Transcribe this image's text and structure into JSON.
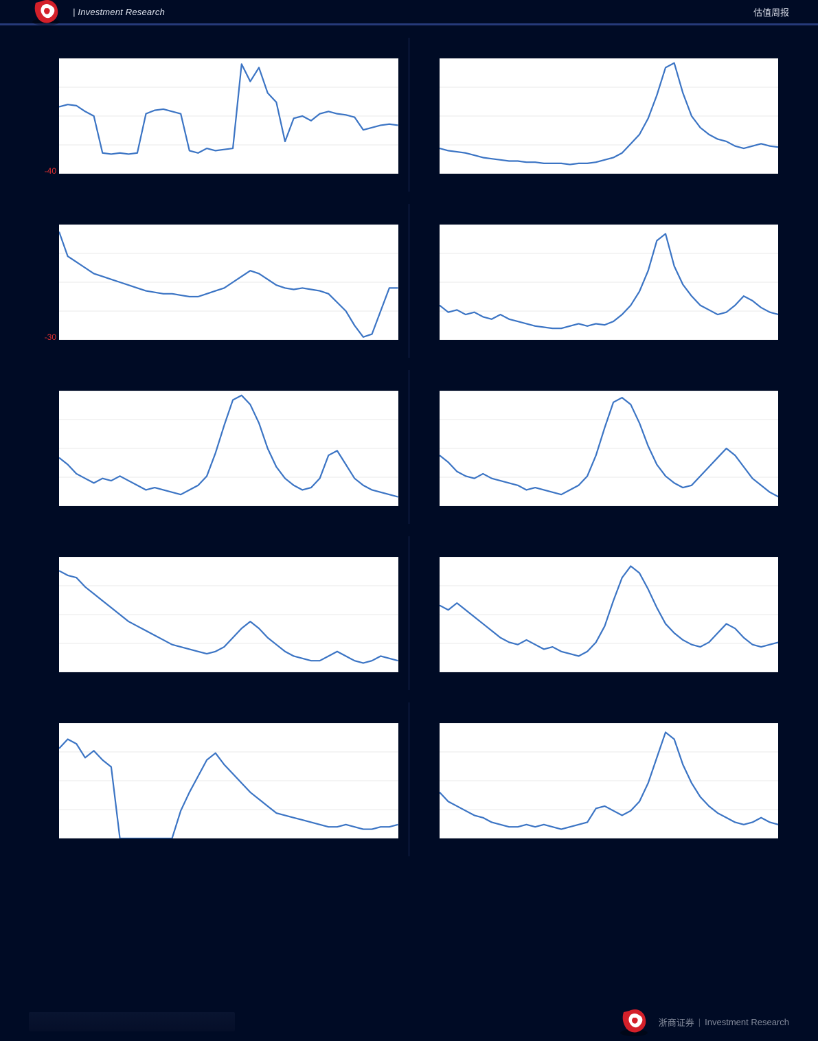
{
  "header": {
    "left_label": "| Investment Research",
    "right_label": "估值周报"
  },
  "footer": {
    "brand_cn": "浙商证券",
    "brand_en": "Investment Research"
  },
  "chart_defaults": {
    "line_color": "#3b74c4",
    "grid_color": "#bfbfbf",
    "axis_color": "#9a9a9a",
    "background_color": "#ffffff",
    "line_width": 2.2,
    "n_hgrid": 4,
    "title_fontsize": 14,
    "ylabel_fontsize": 12,
    "aspect": "wide"
  },
  "charts": [
    {
      "id": "r1l",
      "col": "left",
      "title": "",
      "ylim": [
        -40,
        60
      ],
      "ytick_step": 20,
      "min_label_red": "-40",
      "values": [
        18,
        20,
        19,
        14,
        10,
        -22,
        -23,
        -22,
        -23,
        -22,
        12,
        15,
        16,
        14,
        12,
        -20,
        -22,
        -18,
        -20,
        -19,
        -18,
        55,
        40,
        52,
        30,
        22,
        -12,
        8,
        10,
        6,
        12,
        14,
        12,
        11,
        9,
        -2,
        0,
        2,
        3,
        2
      ]
    },
    {
      "id": "r1r",
      "col": "right",
      "title": "",
      "ylim": [
        0,
        100
      ],
      "ytick_step": 20,
      "values": [
        22,
        20,
        19,
        18,
        16,
        14,
        13,
        12,
        11,
        11,
        10,
        10,
        9,
        9,
        9,
        8,
        9,
        9,
        10,
        12,
        14,
        18,
        26,
        34,
        48,
        68,
        92,
        96,
        70,
        50,
        40,
        34,
        30,
        28,
        24,
        22,
        24,
        26,
        24,
        23
      ]
    },
    {
      "id": "r2l",
      "col": "left",
      "title": "",
      "ylim": [
        -30,
        50
      ],
      "ytick_step": 20,
      "min_label_red": "-30",
      "values": [
        45,
        28,
        24,
        20,
        16,
        14,
        12,
        10,
        8,
        6,
        4,
        3,
        2,
        2,
        1,
        0,
        0,
        2,
        4,
        6,
        10,
        14,
        18,
        16,
        12,
        8,
        6,
        5,
        6,
        5,
        4,
        2,
        -4,
        -10,
        -20,
        -28,
        -26,
        -10,
        6,
        6
      ]
    },
    {
      "id": "r2r",
      "col": "right",
      "title": "",
      "ylim": [
        0,
        100
      ],
      "ytick_step": 20,
      "values": [
        30,
        24,
        26,
        22,
        24,
        20,
        18,
        22,
        18,
        16,
        14,
        12,
        11,
        10,
        10,
        12,
        14,
        12,
        14,
        13,
        16,
        22,
        30,
        42,
        60,
        86,
        92,
        64,
        48,
        38,
        30,
        26,
        22,
        24,
        30,
        38,
        34,
        28,
        24,
        22
      ]
    },
    {
      "id": "r3l",
      "col": "left",
      "title": "",
      "ylim": [
        0,
        100
      ],
      "ytick_step": 20,
      "values": [
        42,
        36,
        28,
        24,
        20,
        24,
        22,
        26,
        22,
        18,
        14,
        16,
        14,
        12,
        10,
        14,
        18,
        26,
        46,
        70,
        92,
        96,
        88,
        72,
        50,
        34,
        24,
        18,
        14,
        16,
        24,
        44,
        48,
        36,
        24,
        18,
        14,
        12,
        10,
        8
      ]
    },
    {
      "id": "r3r",
      "col": "right",
      "title": "",
      "ylim": [
        0,
        100
      ],
      "ytick_step": 20,
      "values": [
        44,
        38,
        30,
        26,
        24,
        28,
        24,
        22,
        20,
        18,
        14,
        16,
        14,
        12,
        10,
        14,
        18,
        26,
        44,
        68,
        90,
        94,
        88,
        72,
        52,
        36,
        26,
        20,
        16,
        18,
        26,
        34,
        42,
        50,
        44,
        34,
        24,
        18,
        12,
        8
      ]
    },
    {
      "id": "r4l",
      "col": "left",
      "title": "",
      "ylim": [
        0,
        100
      ],
      "ytick_step": 20,
      "values": [
        88,
        84,
        82,
        74,
        68,
        62,
        56,
        50,
        44,
        40,
        36,
        32,
        28,
        24,
        22,
        20,
        18,
        16,
        18,
        22,
        30,
        38,
        44,
        38,
        30,
        24,
        18,
        14,
        12,
        10,
        10,
        14,
        18,
        14,
        10,
        8,
        10,
        14,
        12,
        10
      ]
    },
    {
      "id": "r4r",
      "col": "right",
      "title": "",
      "ylim": [
        0,
        100
      ],
      "ytick_step": 20,
      "values": [
        58,
        54,
        60,
        54,
        48,
        42,
        36,
        30,
        26,
        24,
        28,
        24,
        20,
        22,
        18,
        16,
        14,
        18,
        26,
        40,
        62,
        82,
        92,
        86,
        72,
        56,
        42,
        34,
        28,
        24,
        22,
        26,
        34,
        42,
        38,
        30,
        24,
        22,
        24,
        26
      ]
    },
    {
      "id": "r5l",
      "col": "left",
      "title": "",
      "ylim": [
        0,
        100
      ],
      "ytick_step": 20,
      "values": [
        78,
        86,
        82,
        70,
        76,
        68,
        62,
        0,
        0,
        0,
        0,
        0,
        0,
        0,
        24,
        40,
        54,
        68,
        74,
        64,
        56,
        48,
        40,
        34,
        28,
        22,
        20,
        18,
        16,
        14,
        12,
        10,
        10,
        12,
        10,
        8,
        8,
        10,
        10,
        12
      ]
    },
    {
      "id": "r5r",
      "col": "right",
      "title": "",
      "ylim": [
        0,
        100
      ],
      "ytick_step": 20,
      "values": [
        40,
        32,
        28,
        24,
        20,
        18,
        14,
        12,
        10,
        10,
        12,
        10,
        12,
        10,
        8,
        10,
        12,
        14,
        26,
        28,
        24,
        20,
        24,
        32,
        48,
        70,
        92,
        86,
        64,
        48,
        36,
        28,
        22,
        18,
        14,
        12,
        14,
        18,
        14,
        12
      ]
    }
  ]
}
